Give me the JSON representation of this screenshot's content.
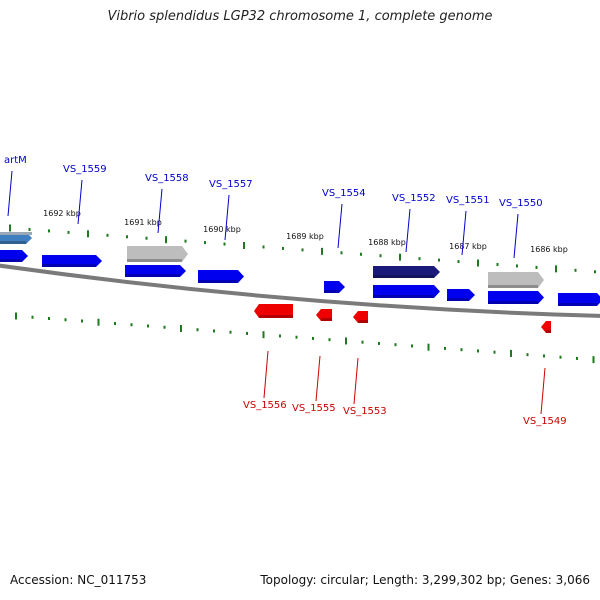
{
  "title": "Vibrio splendidus LGP32 chromosome 1, complete genome",
  "footer": {
    "accession": "Accession: NC_011753",
    "info": "Topology: circular; Length: 3,299,302 bp; Genes: 3,066"
  },
  "colors": {
    "backbone": "#7a7a7a",
    "tick": "#1f7a1f",
    "forward_gene": "#0000ee",
    "reverse_gene": "#ee0000",
    "pseudo_gene": "#bdbdbd",
    "highlight_gene": "#1a1a7a",
    "partial_gene": "#3f7fbf",
    "label_forward": "#0000cc",
    "label_reverse": "#cc0000"
  },
  "scale_labels": [
    "1692 kbp",
    "1691 kbp",
    "1690 kbp",
    "1689 kbp",
    "1688 kbp",
    "1687 kbp",
    "1686 kbp"
  ],
  "genes_forward": [
    {
      "label": "artM",
      "kind": "partial"
    },
    {
      "label": "VS_1559",
      "kind": "normal"
    },
    {
      "label": "VS_1558",
      "kind": "pseudo"
    },
    {
      "label": "VS_1557",
      "kind": "normal"
    },
    {
      "label": "VS_1554",
      "kind": "normal"
    },
    {
      "label": "VS_1552",
      "kind": "highlight"
    },
    {
      "label": "VS_1551",
      "kind": "normal"
    },
    {
      "label": "VS_1550",
      "kind": "pseudo"
    }
  ],
  "genes_reverse": [
    {
      "label": "VS_1556"
    },
    {
      "label": "VS_1555"
    },
    {
      "label": "VS_1553"
    },
    {
      "label": "VS_1549"
    }
  ]
}
